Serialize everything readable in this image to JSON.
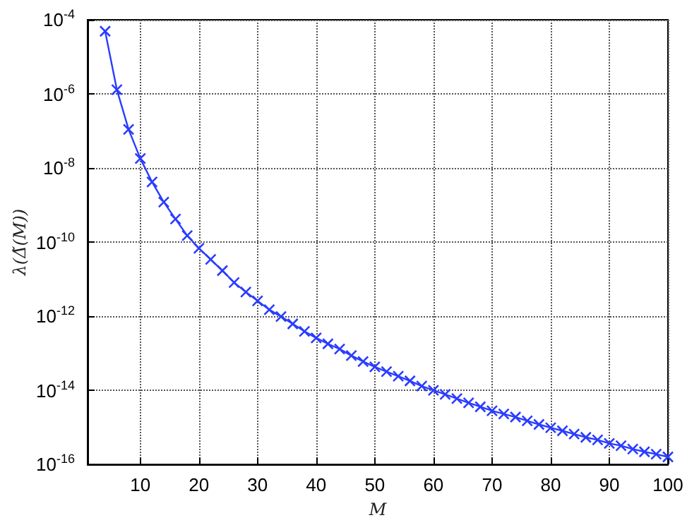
{
  "chart_data": {
    "type": "line",
    "xlabel": "M",
    "ylabel": "λ(Δ̃(M))",
    "x": [
      4,
      6,
      8,
      10,
      12,
      14,
      16,
      18,
      20,
      22,
      24,
      26,
      28,
      30,
      32,
      34,
      36,
      38,
      40,
      42,
      44,
      46,
      48,
      50,
      52,
      54,
      56,
      58,
      60,
      62,
      64,
      66,
      68,
      70,
      72,
      74,
      76,
      78,
      80,
      82,
      84,
      86,
      88,
      90,
      92,
      94,
      96,
      98,
      100
    ],
    "series": [
      {
        "color": "#2a3cff",
        "values": [
          4.9e-05,
          1.3e-06,
          1.1e-07,
          1.8e-08,
          4.2e-09,
          1.2e-09,
          4.2e-10,
          1.5e-10,
          6.8e-11,
          3.4e-11,
          1.7e-11,
          8.1e-12,
          4.5e-12,
          2.6e-12,
          1.5e-12,
          9.8e-13,
          6.2e-13,
          3.9e-13,
          2.6e-13,
          1.8e-13,
          1.3e-13,
          8.7e-14,
          6e-14,
          4.3e-14,
          3.2e-14,
          2.4e-14,
          1.8e-14,
          1.3e-14,
          1e-14,
          7.8e-15,
          6e-15,
          4.6e-15,
          3.6e-15,
          2.8e-15,
          2.3e-15,
          1.9e-15,
          1.5e-15,
          1.2e-15,
          9.8e-16,
          8.1e-16,
          6.6e-16,
          5.4e-16,
          4.6e-16,
          3.7e-16,
          3.2e-16,
          2.6e-16,
          2.2e-16,
          1.9e-16,
          1.6e-16
        ]
      }
    ],
    "xlim": [
      1,
      100
    ],
    "xticks": [
      10,
      20,
      30,
      40,
      50,
      60,
      70,
      80,
      90,
      100
    ],
    "ylim": [
      1e-16,
      0.0001
    ],
    "yticks": [
      {
        "value": 1e-16,
        "label": "10$^{-16}$"
      },
      {
        "value": 1e-14,
        "label": "10$^{-14}$"
      },
      {
        "value": 1e-12,
        "label": "10$^{-12}$"
      },
      {
        "value": 1e-10,
        "label": "10$^{-10}$"
      },
      {
        "value": 1e-08,
        "label": "10$^{-8}$"
      },
      {
        "value": 1e-06,
        "label": "10$^{-6}$"
      },
      {
        "value": 0.0001,
        "label": "10$^{-4}$"
      }
    ],
    "log": "y",
    "grid": true,
    "marker": "cross",
    "line_style": "solid"
  }
}
